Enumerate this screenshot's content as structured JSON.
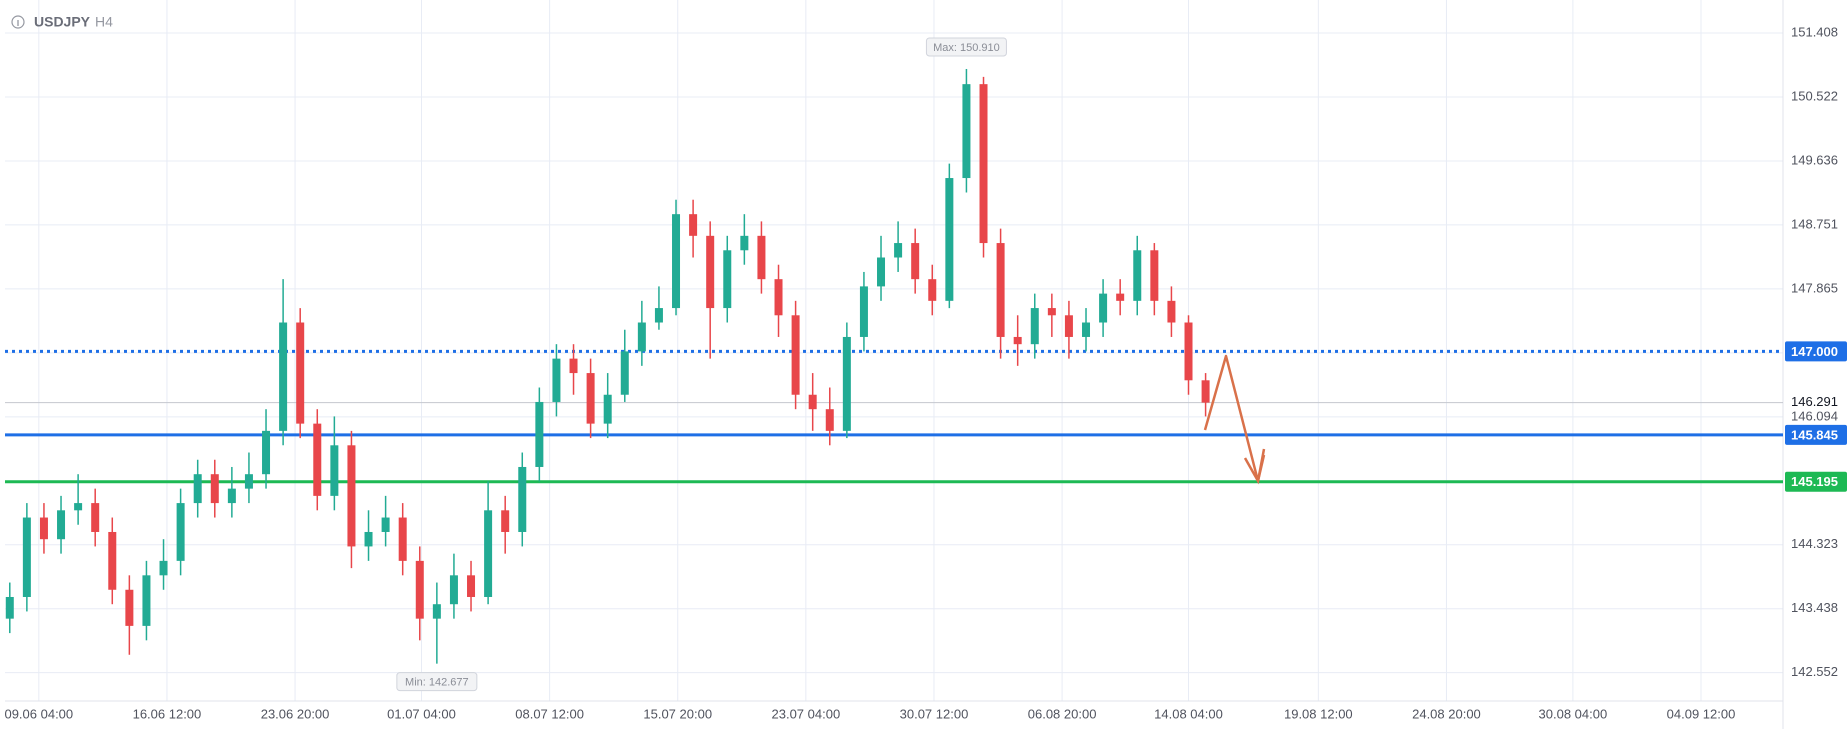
{
  "chart_data": {
    "type": "candlestick",
    "symbol": "USDJPY",
    "timeframe": "H4",
    "up_color": "#22ab94",
    "down_color": "#e8464a",
    "open": [
      143.3,
      143.6,
      144.7,
      144.4,
      144.8,
      144.9,
      144.5,
      143.7,
      143.2,
      143.9,
      144.1,
      144.9,
      145.3,
      144.9,
      145.1,
      145.3,
      145.9,
      147.4,
      146.0,
      145.0,
      145.7,
      144.3,
      144.5,
      144.7,
      144.1,
      143.3,
      143.5,
      143.9,
      143.6,
      144.8,
      144.5,
      145.4,
      146.3,
      146.9,
      146.7,
      146.0,
      146.4,
      147.0,
      147.4,
      147.6,
      148.9,
      148.6,
      147.6,
      148.4,
      148.6,
      148.0,
      147.5,
      146.4,
      146.2,
      145.9,
      147.2,
      147.9,
      148.3,
      148.5,
      148.0,
      147.7,
      149.4,
      150.7,
      148.5,
      147.2,
      147.1,
      147.6,
      147.5,
      147.2,
      147.4,
      147.8,
      147.7,
      148.4,
      147.7,
      147.4,
      146.6
    ],
    "high": [
      143.8,
      144.9,
      144.9,
      145.0,
      145.3,
      145.1,
      144.7,
      143.9,
      144.1,
      144.4,
      145.1,
      145.5,
      145.5,
      145.4,
      145.6,
      146.2,
      148.0,
      147.6,
      146.2,
      146.1,
      145.9,
      144.8,
      145.0,
      144.9,
      144.3,
      143.8,
      144.2,
      144.1,
      145.2,
      145.0,
      145.6,
      146.5,
      147.1,
      147.1,
      146.9,
      146.7,
      147.3,
      147.7,
      147.9,
      149.1,
      149.1,
      148.8,
      148.6,
      148.9,
      148.8,
      148.2,
      147.7,
      146.7,
      146.5,
      147.4,
      148.1,
      148.6,
      148.8,
      148.7,
      148.2,
      149.6,
      150.91,
      150.8,
      148.7,
      147.5,
      147.8,
      147.8,
      147.7,
      147.6,
      148.0,
      148.0,
      148.6,
      148.5,
      147.9,
      147.5,
      146.7
    ],
    "low": [
      143.1,
      143.4,
      144.2,
      144.2,
      144.6,
      144.3,
      143.5,
      142.8,
      143.0,
      143.7,
      143.9,
      144.7,
      144.7,
      144.7,
      144.9,
      145.1,
      145.7,
      145.8,
      144.8,
      144.8,
      144.0,
      144.1,
      144.3,
      143.9,
      143.0,
      142.677,
      143.3,
      143.4,
      143.5,
      144.2,
      144.3,
      145.2,
      146.1,
      146.4,
      145.8,
      145.8,
      146.3,
      146.8,
      147.3,
      147.5,
      148.3,
      146.9,
      147.4,
      148.2,
      147.8,
      147.2,
      146.2,
      145.9,
      145.7,
      145.8,
      147.0,
      147.7,
      148.1,
      147.8,
      147.5,
      147.6,
      149.2,
      148.3,
      146.9,
      146.8,
      146.9,
      147.2,
      146.9,
      147.0,
      147.2,
      147.5,
      147.5,
      147.5,
      147.2,
      146.4,
      146.1
    ],
    "close": [
      143.6,
      144.7,
      144.4,
      144.8,
      144.9,
      144.5,
      143.7,
      143.2,
      143.9,
      144.1,
      144.9,
      145.3,
      144.9,
      145.1,
      145.3,
      145.9,
      147.4,
      146.0,
      145.0,
      145.7,
      144.3,
      144.5,
      144.7,
      144.1,
      143.3,
      143.5,
      143.9,
      143.6,
      144.8,
      144.5,
      145.4,
      146.3,
      146.9,
      146.7,
      146.0,
      146.4,
      147.0,
      147.4,
      147.6,
      148.9,
      148.6,
      147.6,
      148.4,
      148.6,
      148.0,
      147.5,
      146.4,
      146.2,
      145.9,
      147.2,
      147.9,
      148.3,
      148.5,
      148.0,
      147.7,
      149.4,
      150.7,
      148.5,
      147.2,
      147.1,
      147.6,
      147.5,
      147.2,
      147.4,
      147.8,
      147.7,
      148.4,
      147.7,
      147.4,
      146.6,
      146.291
    ],
    "xlim": [
      -0.28,
      103.8
    ],
    "xticks": [
      {
        "value": 1.7,
        "label": "09.06 04:00"
      },
      {
        "value": 9.2,
        "label": "16.06 12:00"
      },
      {
        "value": 16.7,
        "label": "23.06 20:00"
      },
      {
        "value": 24.1,
        "label": "01.07 04:00"
      },
      {
        "value": 31.6,
        "label": "08.07 12:00"
      },
      {
        "value": 39.1,
        "label": "15.07 20:00"
      },
      {
        "value": 46.6,
        "label": "23.07 04:00"
      },
      {
        "value": 54.1,
        "label": "30.07 12:00"
      },
      {
        "value": 61.6,
        "label": "06.08 20:00"
      },
      {
        "value": 69.0,
        "label": "14.08 04:00"
      },
      {
        "value": 76.6,
        "label": "19.08 12:00"
      },
      {
        "value": 84.1,
        "label": "24.08 20:00"
      },
      {
        "value": 91.5,
        "label": "30.08 04:00"
      },
      {
        "value": 99.0,
        "label": "04.09 12:00"
      }
    ],
    "ylim": [
      142.16,
      151.865
    ],
    "yticks": [
      151.408,
      150.522,
      149.636,
      148.751,
      147.865,
      146.979,
      146.094,
      145.208,
      144.323,
      143.438,
      142.552
    ],
    "grid": true,
    "levels": [
      {
        "value": 147.0,
        "label": "147.000",
        "color": "#1e6fe6",
        "style": "dotted"
      },
      {
        "value": 145.845,
        "label": "145.845",
        "color": "#1e6fe6",
        "style": "solid"
      },
      {
        "value": 145.195,
        "label": "145.195",
        "color": "#1db954",
        "style": "solid"
      }
    ],
    "last_price": {
      "value": 146.291,
      "label": "146.291"
    },
    "annotations": [
      {
        "text": "Max: 150.910",
        "value": 150.91,
        "index": 56
      },
      {
        "text": "Min: 142.677",
        "value": 142.677,
        "index": 25
      }
    ]
  }
}
